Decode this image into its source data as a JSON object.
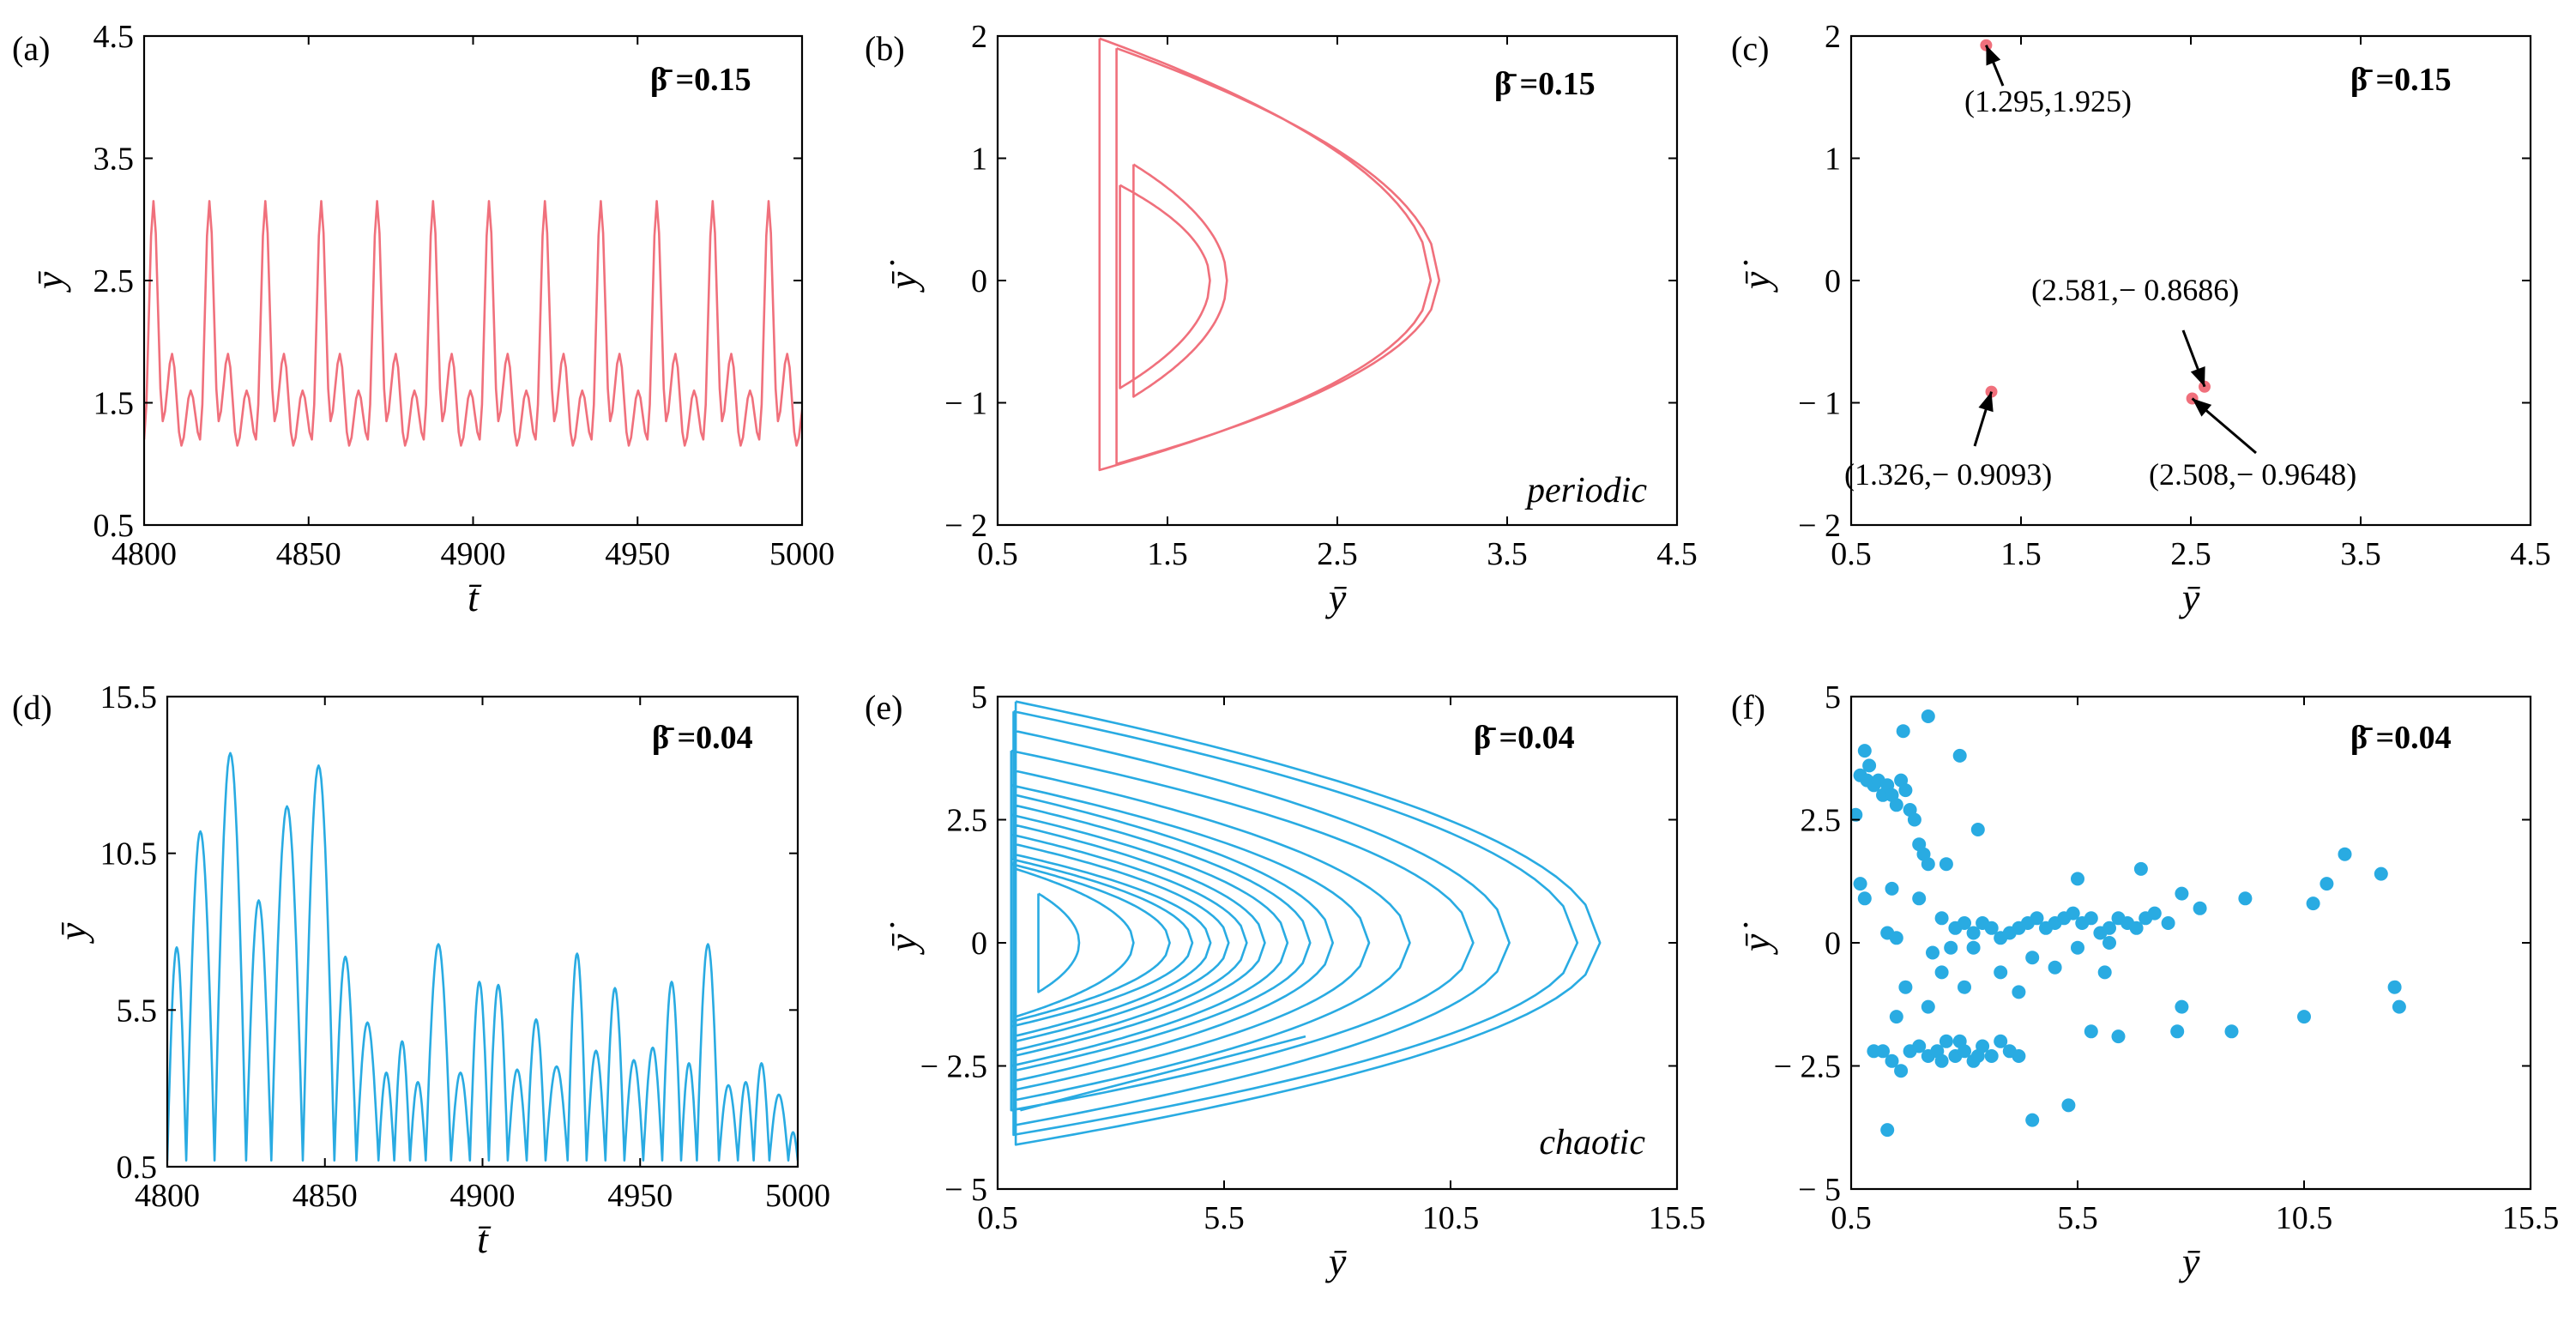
{
  "colors": {
    "pink": "#f0707c",
    "blue": "#29abe2",
    "axis": "#000000"
  },
  "chart_data": [
    {
      "id": "a",
      "type": "line",
      "panel_label": "(a)",
      "xlabel": "t̄",
      "ylabel": "ȳ",
      "xlim": [
        4800,
        5000
      ],
      "ylim": [
        0.5,
        4.5
      ],
      "xticks": [
        "4800",
        "4850",
        "4900",
        "4950",
        "5000"
      ],
      "yticks": [
        "0.5",
        "1.5",
        "2.5",
        "3.5",
        "4.5"
      ],
      "beta_label": "β̄ =0.15",
      "color": "pink",
      "series": [
        {
          "name": "ȳ(t̄)",
          "kind": "period3",
          "t0": 4800,
          "t1": 5000,
          "period": 17.0,
          "peaks": [
            3.15,
            1.9,
            1.6
          ],
          "troughs": [
            1.2,
            1.35,
            1.15
          ]
        }
      ]
    },
    {
      "id": "b",
      "type": "line",
      "panel_label": "(b)",
      "xlabel": "ȳ",
      "ylabel": "ȳ̇",
      "xlim": [
        0.5,
        4.5
      ],
      "ylim": [
        -2,
        2
      ],
      "xticks": [
        "0.5",
        "1.5",
        "2.5",
        "3.5",
        "4.5"
      ],
      "yticks": [
        "− 2",
        "− 1",
        "0",
        "1",
        "2"
      ],
      "beta_label": "β̄ =0.15",
      "regime_label": "periodic",
      "color": "pink",
      "series": [
        {
          "name": "phase orbit",
          "kind": "loops",
          "loops": [
            {
              "xmin": 1.1,
              "xmax": 3.05,
              "vtop": 1.98,
              "vbot": -1.55
            },
            {
              "xmin": 1.2,
              "xmax": 3.1,
              "vtop": 1.9,
              "vbot": -1.5
            },
            {
              "xmin": 1.3,
              "xmax": 1.85,
              "vtop": 0.95,
              "vbot": -0.95
            },
            {
              "xmin": 1.22,
              "xmax": 1.75,
              "vtop": 0.78,
              "vbot": -0.88
            }
          ]
        }
      ]
    },
    {
      "id": "c",
      "type": "scatter",
      "panel_label": "(c)",
      "xlabel": "ȳ",
      "ylabel": "ȳ̇",
      "xlim": [
        0.5,
        4.5
      ],
      "ylim": [
        -2,
        2
      ],
      "xticks": [
        "0.5",
        "1.5",
        "2.5",
        "3.5",
        "4.5"
      ],
      "yticks": [
        "− 2",
        "− 1",
        "0",
        "1",
        "2"
      ],
      "beta_label": "β̄ =0.15",
      "color": "pink",
      "points": [
        [
          1.295,
          1.925
        ],
        [
          1.326,
          -0.9093
        ],
        [
          2.581,
          -0.8686
        ],
        [
          2.508,
          -0.9648
        ]
      ],
      "annotations": [
        "(1.295,1.925)",
        "(1.326,− 0.9093)",
        "(2.581,− 0.8686)",
        "(2.508,− 0.9648)"
      ]
    },
    {
      "id": "d",
      "type": "line",
      "panel_label": "(d)",
      "xlabel": "t̄",
      "ylabel": "ȳ",
      "xlim": [
        4800,
        5000
      ],
      "ylim": [
        0.5,
        15.5
      ],
      "xticks": [
        "4800",
        "4850",
        "4900",
        "4950",
        "5000"
      ],
      "yticks": [
        "0.5",
        "5.5",
        "10.5",
        "15.5"
      ],
      "beta_label": "β̄ =0.04",
      "color": "blue",
      "series": [
        {
          "name": "ȳ(t̄)",
          "kind": "arches",
          "base": 0.7,
          "arches": [
            [
              4800,
              4806,
              7.5
            ],
            [
              4806,
              4815,
              11.2
            ],
            [
              4815,
              4825,
              13.7
            ],
            [
              4825,
              4833,
              9.0
            ],
            [
              4833,
              4843,
              12.0
            ],
            [
              4843,
              4853,
              13.3
            ],
            [
              4853,
              4860,
              7.2
            ],
            [
              4860,
              4867,
              5.1
            ],
            [
              4867,
              4872,
              3.5
            ],
            [
              4872,
              4877,
              4.5
            ],
            [
              4877,
              4882,
              3.2
            ],
            [
              4882,
              4890,
              7.6
            ],
            [
              4890,
              4896,
              3.5
            ],
            [
              4896,
              4902,
              6.4
            ],
            [
              4902,
              4908,
              6.3
            ],
            [
              4908,
              4914,
              3.6
            ],
            [
              4914,
              4920,
              5.2
            ],
            [
              4920,
              4927,
              3.7
            ],
            [
              4927,
              4933,
              7.3
            ],
            [
              4933,
              4939,
              4.2
            ],
            [
              4939,
              4945,
              6.2
            ],
            [
              4945,
              4951,
              3.9
            ],
            [
              4951,
              4957,
              4.3
            ],
            [
              4957,
              4963,
              6.4
            ],
            [
              4963,
              4968,
              3.8
            ],
            [
              4968,
              4975,
              7.6
            ],
            [
              4975,
              4981,
              3.1
            ],
            [
              4981,
              4986,
              3.2
            ],
            [
              4986,
              4991,
              3.8
            ],
            [
              4991,
              4997,
              2.8
            ],
            [
              4997,
              5000,
              1.6
            ]
          ]
        }
      ]
    },
    {
      "id": "e",
      "type": "line",
      "panel_label": "(e)",
      "xlabel": "ȳ",
      "ylabel": "ȳ̇",
      "xlim": [
        0.5,
        15.5
      ],
      "ylim": [
        -5,
        5
      ],
      "xticks": [
        "0.5",
        "5.5",
        "10.5",
        "15.5"
      ],
      "yticks": [
        "− 5",
        "− 2.5",
        "0",
        "2.5",
        "5"
      ],
      "beta_label": "β̄ =0.04",
      "regime_label": "chaotic",
      "color": "blue",
      "series": [
        {
          "name": "phase orbit",
          "kind": "loops",
          "loops": [
            {
              "xmin": 0.9,
              "xmax": 13.8,
              "vtop": 4.9,
              "vbot": -4.1
            },
            {
              "xmin": 0.85,
              "xmax": 13.3,
              "vtop": 4.7,
              "vbot": -3.9
            },
            {
              "xmin": 0.9,
              "xmax": 11.8,
              "vtop": 4.3,
              "vbot": -3.7
            },
            {
              "xmin": 0.8,
              "xmax": 11.0,
              "vtop": 3.9,
              "vbot": -3.4
            },
            {
              "xmin": 0.85,
              "xmax": 9.6,
              "vtop": 3.5,
              "vbot": -3.2
            },
            {
              "xmin": 0.8,
              "xmax": 8.7,
              "vtop": 3.2,
              "vbot": -3.0
            },
            {
              "xmin": 0.9,
              "xmax": 7.9,
              "vtop": 3.0,
              "vbot": -2.8
            },
            {
              "xmin": 0.85,
              "xmax": 7.4,
              "vtop": 2.8,
              "vbot": -2.6
            },
            {
              "xmin": 0.8,
              "xmax": 6.9,
              "vtop": 2.6,
              "vbot": -2.5
            },
            {
              "xmin": 0.85,
              "xmax": 6.4,
              "vtop": 2.4,
              "vbot": -2.3
            },
            {
              "xmin": 0.8,
              "xmax": 6.0,
              "vtop": 2.2,
              "vbot": -2.2
            },
            {
              "xmin": 0.9,
              "xmax": 5.6,
              "vtop": 2.0,
              "vbot": -2.0
            },
            {
              "xmin": 0.85,
              "xmax": 5.2,
              "vtop": 1.8,
              "vbot": -1.9
            },
            {
              "xmin": 0.8,
              "xmax": 4.8,
              "vtop": 1.7,
              "vbot": -1.7
            },
            {
              "xmin": 0.8,
              "xmax": 4.3,
              "vtop": 1.6,
              "vbot": -1.6
            },
            {
              "xmin": 0.9,
              "xmax": 3.5,
              "vtop": 1.5,
              "vbot": -1.5
            },
            {
              "xmin": 1.4,
              "xmax": 2.3,
              "vtop": 1.0,
              "vbot": -1.0
            }
          ]
        }
      ]
    },
    {
      "id": "f",
      "type": "scatter",
      "panel_label": "(f)",
      "xlabel": "ȳ",
      "ylabel": "ȳ̇",
      "xlim": [
        0.5,
        15.5
      ],
      "ylim": [
        -5,
        5
      ],
      "xticks": [
        "0.5",
        "5.5",
        "10.5",
        "15.5"
      ],
      "yticks": [
        "− 5",
        "− 2.5",
        "0",
        "2.5",
        "5"
      ],
      "beta_label": "β̄ =0.04",
      "color": "blue",
      "points": [
        [
          0.6,
          2.6
        ],
        [
          0.7,
          3.4
        ],
        [
          0.8,
          3.9
        ],
        [
          0.9,
          3.6
        ],
        [
          0.85,
          3.3
        ],
        [
          1.0,
          3.2
        ],
        [
          1.1,
          3.3
        ],
        [
          1.2,
          3.0
        ],
        [
          1.3,
          3.2
        ],
        [
          1.4,
          3.0
        ],
        [
          1.5,
          2.8
        ],
        [
          1.6,
          3.3
        ],
        [
          1.7,
          3.1
        ],
        [
          1.8,
          2.7
        ],
        [
          1.9,
          2.5
        ],
        [
          2.0,
          2.0
        ],
        [
          2.1,
          1.8
        ],
        [
          2.2,
          1.6
        ],
        [
          1.65,
          4.3
        ],
        [
          2.2,
          4.6
        ],
        [
          2.9,
          3.8
        ],
        [
          2.6,
          1.6
        ],
        [
          3.3,
          2.3
        ],
        [
          0.7,
          1.2
        ],
        [
          0.8,
          0.9
        ],
        [
          1.4,
          1.1
        ],
        [
          1.3,
          0.2
        ],
        [
          1.5,
          0.1
        ],
        [
          2.0,
          0.9
        ],
        [
          2.5,
          0.5
        ],
        [
          2.7,
          -0.1
        ],
        [
          2.8,
          0.3
        ],
        [
          3.0,
          0.4
        ],
        [
          3.2,
          0.2
        ],
        [
          3.4,
          0.4
        ],
        [
          3.6,
          0.3
        ],
        [
          3.8,
          0.1
        ],
        [
          4.0,
          0.2
        ],
        [
          4.2,
          0.3
        ],
        [
          4.4,
          0.4
        ],
        [
          4.6,
          0.5
        ],
        [
          4.8,
          0.3
        ],
        [
          5.0,
          0.4
        ],
        [
          5.2,
          0.5
        ],
        [
          5.4,
          0.6
        ],
        [
          5.6,
          0.4
        ],
        [
          5.8,
          0.5
        ],
        [
          6.0,
          0.2
        ],
        [
          6.2,
          0.3
        ],
        [
          6.4,
          0.5
        ],
        [
          6.6,
          0.4
        ],
        [
          6.8,
          0.3
        ],
        [
          7.0,
          0.5
        ],
        [
          7.2,
          0.6
        ],
        [
          5.5,
          -0.1
        ],
        [
          6.2,
          0.0
        ],
        [
          2.3,
          -0.2
        ],
        [
          3.2,
          -0.1
        ],
        [
          3.8,
          -0.6
        ],
        [
          4.5,
          -0.3
        ],
        [
          5.0,
          -0.5
        ],
        [
          6.1,
          -0.6
        ],
        [
          2.5,
          -0.6
        ],
        [
          3.0,
          -0.9
        ],
        [
          4.2,
          -1.0
        ],
        [
          1.7,
          -0.9
        ],
        [
          1.5,
          -1.5
        ],
        [
          2.2,
          -1.3
        ],
        [
          1.0,
          -2.2
        ],
        [
          1.2,
          -2.2
        ],
        [
          1.4,
          -2.4
        ],
        [
          1.6,
          -2.6
        ],
        [
          1.8,
          -2.2
        ],
        [
          2.0,
          -2.1
        ],
        [
          2.2,
          -2.3
        ],
        [
          2.4,
          -2.2
        ],
        [
          2.6,
          -2.0
        ],
        [
          2.8,
          -2.3
        ],
        [
          3.0,
          -2.2
        ],
        [
          3.2,
          -2.4
        ],
        [
          3.4,
          -2.1
        ],
        [
          3.6,
          -2.3
        ],
        [
          3.8,
          -2.0
        ],
        [
          4.0,
          -2.2
        ],
        [
          4.2,
          -2.3
        ],
        [
          2.5,
          -2.4
        ],
        [
          2.9,
          -2.0
        ],
        [
          3.3,
          -2.3
        ],
        [
          1.3,
          -3.8
        ],
        [
          4.5,
          -3.6
        ],
        [
          5.3,
          -3.3
        ],
        [
          5.5,
          1.3
        ],
        [
          6.9,
          1.5
        ],
        [
          7.8,
          1.0
        ],
        [
          9.2,
          0.9
        ],
        [
          10.7,
          0.8
        ],
        [
          11.4,
          1.8
        ],
        [
          11.0,
          1.2
        ],
        [
          12.2,
          1.4
        ],
        [
          12.5,
          -0.9
        ],
        [
          12.6,
          -1.3
        ],
        [
          10.5,
          -1.5
        ],
        [
          8.9,
          -1.8
        ],
        [
          7.8,
          -1.3
        ],
        [
          7.7,
          -1.8
        ],
        [
          5.8,
          -1.8
        ],
        [
          6.4,
          -1.9
        ],
        [
          8.2,
          0.7
        ],
        [
          7.5,
          0.4
        ]
      ]
    }
  ]
}
